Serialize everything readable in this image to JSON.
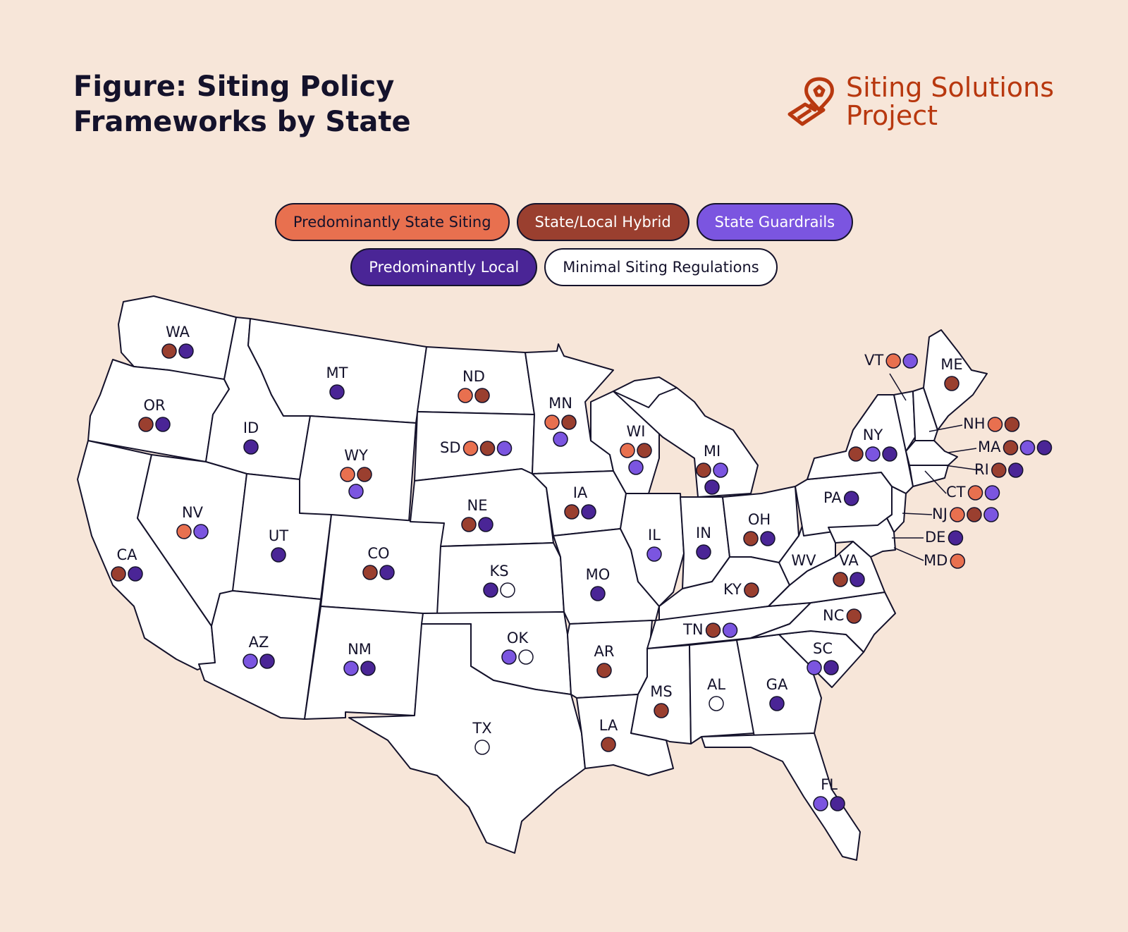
{
  "title": {
    "line1": "Figure: Siting Policy",
    "line2": "Frameworks by State"
  },
  "brand": {
    "line1": "Siting Solutions",
    "line2": "Project",
    "color": "#b8380f"
  },
  "legend": [
    {
      "key": "state",
      "label": "Predominantly State Siting",
      "color": "#e8704f",
      "text_color": "#14122b"
    },
    {
      "key": "hybrid",
      "label": "State/Local Hybrid",
      "color": "#9a3f2f",
      "text_color": "#ffffff"
    },
    {
      "key": "guard",
      "label": "State Guardrails",
      "color": "#7b55e0",
      "text_color": "#ffffff"
    },
    {
      "key": "local",
      "label": "Predominantly Local",
      "color": "#4a2596",
      "text_color": "#ffffff"
    },
    {
      "key": "minimal",
      "label": "Minimal Siting Regulations",
      "color": "#ffffff",
      "text_color": "#14122b"
    }
  ],
  "states": [
    {
      "abbr": "WA",
      "categories": [
        "hybrid",
        "local"
      ]
    },
    {
      "abbr": "OR",
      "categories": [
        "hybrid",
        "local"
      ]
    },
    {
      "abbr": "CA",
      "categories": [
        "hybrid",
        "local"
      ]
    },
    {
      "abbr": "ID",
      "categories": [
        "local"
      ]
    },
    {
      "abbr": "NV",
      "categories": [
        "state",
        "guard"
      ]
    },
    {
      "abbr": "MT",
      "categories": [
        "local"
      ]
    },
    {
      "abbr": "WY",
      "categories": [
        "state",
        "hybrid",
        "guard"
      ]
    },
    {
      "abbr": "UT",
      "categories": [
        "local"
      ]
    },
    {
      "abbr": "AZ",
      "categories": [
        "guard",
        "local"
      ]
    },
    {
      "abbr": "CO",
      "categories": [
        "hybrid",
        "local"
      ]
    },
    {
      "abbr": "NM",
      "categories": [
        "guard",
        "local"
      ]
    },
    {
      "abbr": "ND",
      "categories": [
        "state",
        "hybrid"
      ]
    },
    {
      "abbr": "SD",
      "categories": [
        "state",
        "hybrid",
        "guard"
      ]
    },
    {
      "abbr": "NE",
      "categories": [
        "hybrid",
        "local"
      ]
    },
    {
      "abbr": "KS",
      "categories": [
        "local",
        "minimal"
      ]
    },
    {
      "abbr": "OK",
      "categories": [
        "guard",
        "minimal"
      ]
    },
    {
      "abbr": "TX",
      "categories": [
        "minimal"
      ]
    },
    {
      "abbr": "MN",
      "categories": [
        "state",
        "hybrid",
        "guard"
      ]
    },
    {
      "abbr": "IA",
      "categories": [
        "hybrid",
        "local"
      ]
    },
    {
      "abbr": "MO",
      "categories": [
        "local"
      ]
    },
    {
      "abbr": "AR",
      "categories": [
        "hybrid"
      ]
    },
    {
      "abbr": "LA",
      "categories": [
        "hybrid"
      ]
    },
    {
      "abbr": "WI",
      "categories": [
        "state",
        "hybrid",
        "guard"
      ]
    },
    {
      "abbr": "IL",
      "categories": [
        "guard"
      ]
    },
    {
      "abbr": "MI",
      "categories": [
        "hybrid",
        "guard",
        "local"
      ]
    },
    {
      "abbr": "IN",
      "categories": [
        "local"
      ]
    },
    {
      "abbr": "OH",
      "categories": [
        "hybrid",
        "local"
      ]
    },
    {
      "abbr": "KY",
      "categories": [
        "hybrid"
      ]
    },
    {
      "abbr": "TN",
      "categories": [
        "hybrid",
        "guard"
      ]
    },
    {
      "abbr": "MS",
      "categories": [
        "hybrid"
      ]
    },
    {
      "abbr": "AL",
      "categories": [
        "minimal"
      ]
    },
    {
      "abbr": "GA",
      "categories": [
        "local"
      ]
    },
    {
      "abbr": "FL",
      "categories": [
        "guard",
        "local"
      ]
    },
    {
      "abbr": "SC",
      "categories": [
        "guard",
        "local"
      ]
    },
    {
      "abbr": "NC",
      "categories": [
        "hybrid"
      ]
    },
    {
      "abbr": "VA",
      "categories": [
        "hybrid",
        "local"
      ]
    },
    {
      "abbr": "WV",
      "categories": []
    },
    {
      "abbr": "PA",
      "categories": [
        "local"
      ]
    },
    {
      "abbr": "NY",
      "categories": [
        "hybrid",
        "guard",
        "local"
      ]
    },
    {
      "abbr": "VT",
      "categories": [
        "state",
        "guard"
      ]
    },
    {
      "abbr": "ME",
      "categories": [
        "hybrid"
      ]
    },
    {
      "abbr": "NH",
      "categories": [
        "state",
        "hybrid"
      ]
    },
    {
      "abbr": "MA",
      "categories": [
        "hybrid",
        "guard",
        "local"
      ]
    },
    {
      "abbr": "RI",
      "categories": [
        "hybrid",
        "local"
      ]
    },
    {
      "abbr": "CT",
      "categories": [
        "state",
        "guard"
      ]
    },
    {
      "abbr": "NJ",
      "categories": [
        "state",
        "hybrid",
        "guard"
      ]
    },
    {
      "abbr": "DE",
      "categories": [
        "local"
      ]
    },
    {
      "abbr": "MD",
      "categories": [
        "state"
      ]
    }
  ]
}
